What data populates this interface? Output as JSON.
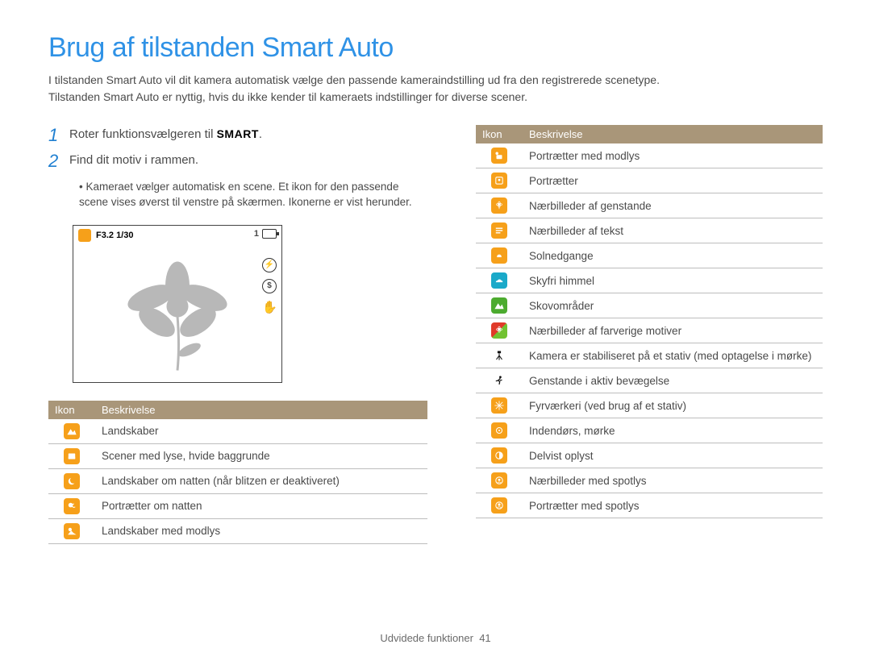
{
  "title": "Brug af tilstanden Smart Auto",
  "intro_l1": "I tilstanden Smart Auto vil dit kamera automatisk vælge den passende kameraindstilling ud fra den registrerede scenetype.",
  "intro_l2": "Tilstanden Smart Auto er nyttig, hvis du ikke kender til kameraets indstillinger for diverse scener.",
  "step1_num": "1",
  "step1_text": "Roter funktionsvælgeren til ",
  "step1_smart": "SMART",
  "step1_dot": ".",
  "step2_num": "2",
  "step2_text": "Find dit motiv i rammen.",
  "step2_bullet": "Kameraet vælger automatisk en scene. Et ikon for den passende scene vises øverst til venstre på skærmen. Ikonerne er vist herunder.",
  "lcd_text": "F3.2 1/30",
  "lcd_count": "1",
  "table_head_icon": "Ikon",
  "table_head_desc": "Beskrivelse",
  "colors": {
    "orange": "#f6a01a",
    "cyan": "#1aa9c9",
    "green": "#4cab2f",
    "greenlight": "#71c231",
    "red": "#e03a2a",
    "black": "#111111",
    "white": "#ffffff"
  },
  "left_rows": [
    {
      "bg": "#f6a01a",
      "svg": "mountain",
      "desc": "Landskaber"
    },
    {
      "bg": "#f6a01a",
      "svg": "whitebg",
      "desc": "Scener med lyse, hvide baggrunde"
    },
    {
      "bg": "#f6a01a",
      "svg": "moon",
      "desc": "Landskaber om natten (når blitzen er deaktiveret)"
    },
    {
      "bg": "#f6a01a",
      "svg": "facenight",
      "desc": "Portrætter om natten"
    },
    {
      "bg": "#f6a01a",
      "svg": "sunmount",
      "desc": "Landskaber med modlys"
    }
  ],
  "right_rows": [
    {
      "bg": "#f6a01a",
      "svg": "faceback",
      "desc": "Portrætter med modlys"
    },
    {
      "bg": "#f6a01a",
      "svg": "face",
      "desc": "Portrætter"
    },
    {
      "bg": "#f6a01a",
      "svg": "macro",
      "desc": "Nærbilleder af genstande"
    },
    {
      "bg": "#f6a01a",
      "svg": "text",
      "desc": "Nærbilleder af tekst"
    },
    {
      "bg": "#f6a01a",
      "svg": "sunset",
      "desc": "Solnedgange"
    },
    {
      "bg": "#1aa9c9",
      "svg": "sky",
      "desc": "Skyfri himmel"
    },
    {
      "bg": "#4cab2f",
      "svg": "mountain",
      "desc": "Skovområder"
    },
    {
      "bg": "split",
      "svg": "colorful",
      "desc": "Nærbilleder af farverige motiver"
    },
    {
      "bg": "none",
      "svg": "tripod",
      "desc": "Kamera er stabiliseret på et stativ (med optagelse i mørke)"
    },
    {
      "bg": "none",
      "svg": "runner",
      "desc": "Genstande i aktiv bevægelse"
    },
    {
      "bg": "#f6a01a",
      "svg": "fireworks",
      "desc": "Fyrværkeri (ved brug af et stativ)"
    },
    {
      "bg": "#f6a01a",
      "svg": "indoor",
      "desc": "Indendørs, mørke"
    },
    {
      "bg": "#f6a01a",
      "svg": "partial",
      "desc": "Delvist oplyst"
    },
    {
      "bg": "#f6a01a",
      "svg": "macrospotface",
      "desc": "Nærbilleder med spotlys"
    },
    {
      "bg": "#f6a01a",
      "svg": "spotface",
      "desc": "Portrætter med spotlys"
    }
  ],
  "footer_text": "Udvidede funktioner",
  "footer_page": "41"
}
